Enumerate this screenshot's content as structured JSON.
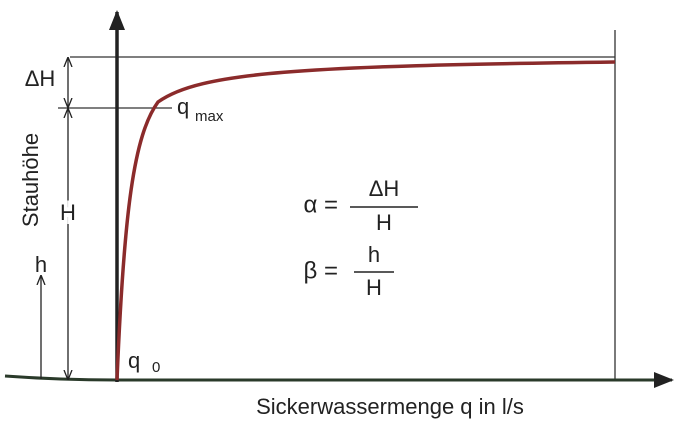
{
  "axes": {
    "y_label": "Stauhöhe",
    "x_label": "Sickerwassermenge q in l/s"
  },
  "dimensions": {
    "delta_h": "ΔH",
    "h_total": "H",
    "h": "h"
  },
  "points": {
    "q_max": {
      "symbol": "q",
      "subscript": "max"
    },
    "q_0": {
      "symbol": "q",
      "subscript": "0"
    }
  },
  "formulas": [
    {
      "lhs": "α =",
      "numerator": "ΔH",
      "denominator": "H"
    },
    {
      "lhs": "β =",
      "numerator": "h",
      "denominator": "H"
    }
  ]
}
